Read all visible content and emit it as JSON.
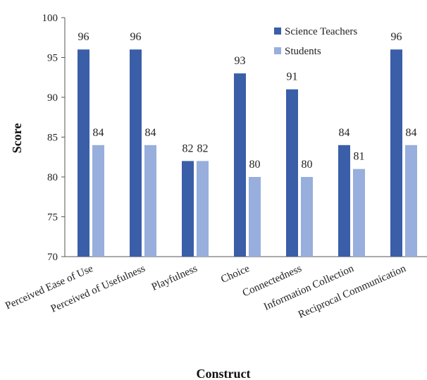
{
  "chart_data": {
    "type": "bar",
    "categories": [
      "Perceived Ease of Use",
      "Perceived of Usefulness",
      "Playfulness",
      "Choice",
      "Connectedness",
      "Information Collection",
      "Reciprocal Communication"
    ],
    "series": [
      {
        "name": "Science Teachers",
        "values": [
          96,
          96,
          82,
          93,
          91,
          84,
          96
        ],
        "color": "#3a5ea8"
      },
      {
        "name": "Students",
        "values": [
          84,
          84,
          82,
          80,
          80,
          81,
          84
        ],
        "color": "#98aedc"
      }
    ],
    "xlabel": "Construct",
    "ylabel": "Score",
    "ylim": [
      70,
      100
    ],
    "yticks": [
      70,
      75,
      80,
      85,
      90,
      95,
      100
    ],
    "grid": false,
    "legend": "top-right"
  }
}
